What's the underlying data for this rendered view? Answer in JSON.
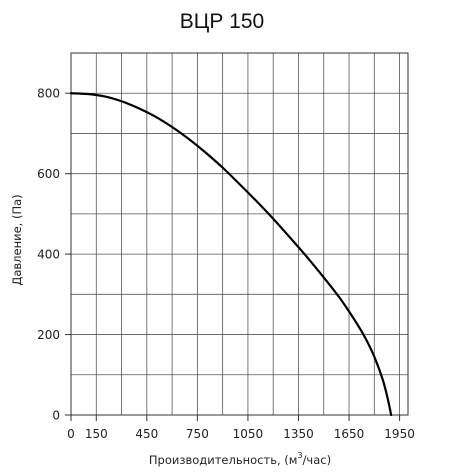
{
  "chart_data": {
    "type": "line",
    "title": "ВЦР 150",
    "xlabel_prefix": "Производительность, (м",
    "xlabel_sup": "3",
    "xlabel_suffix": "/час)",
    "ylabel": "Давление, (Па)",
    "xlim": [
      0,
      2000
    ],
    "ylim": [
      0,
      900
    ],
    "x_ticks": [
      0,
      150,
      450,
      750,
      1050,
      1350,
      1650,
      1950
    ],
    "x_tick_labels": [
      "0",
      "150",
      "450",
      "750",
      "1050",
      "1350",
      "1650",
      "1950"
    ],
    "y_ticks": [
      0,
      200,
      400,
      600,
      800
    ],
    "y_tick_labels": [
      "0",
      "200",
      "400",
      "600",
      "800"
    ],
    "grid": true,
    "grid_x_step": 150,
    "grid_y_step": 100,
    "series": [
      {
        "color": "#000000",
        "x": [
          0,
          100,
          200,
          300,
          400,
          500,
          600,
          700,
          800,
          900,
          1000,
          1100,
          1200,
          1300,
          1400,
          1500,
          1600,
          1700,
          1750,
          1800,
          1850,
          1880,
          1900
        ],
        "y": [
          800,
          798,
          792,
          780,
          763,
          742,
          716,
          686,
          652,
          615,
          574,
          532,
          488,
          441,
          393,
          342,
          288,
          225,
          189,
          145,
          88,
          40,
          0
        ]
      }
    ]
  }
}
